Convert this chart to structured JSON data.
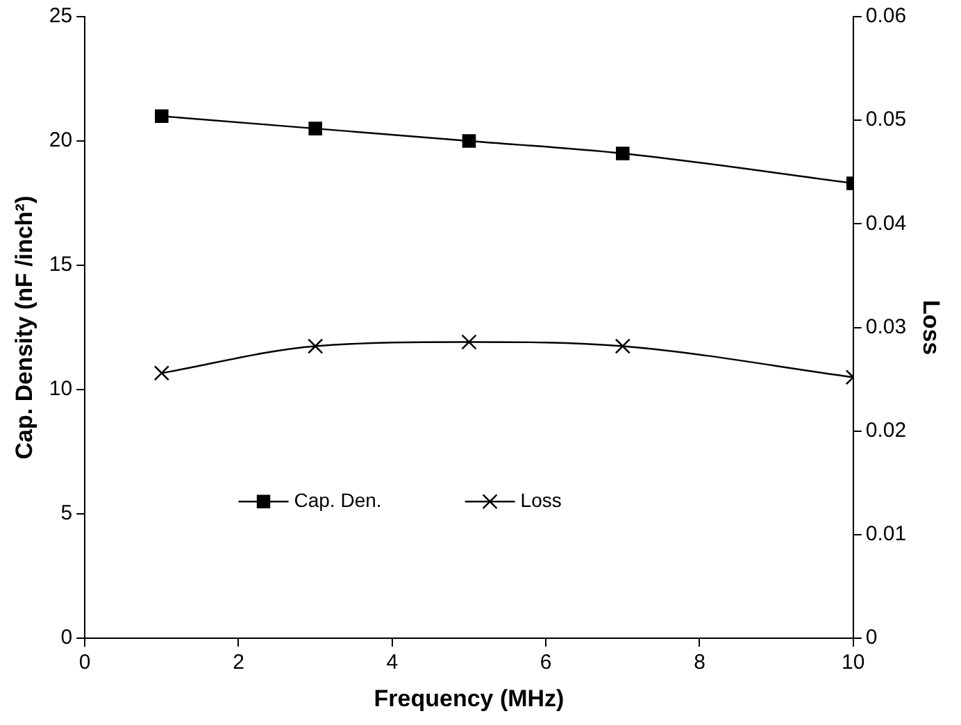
{
  "chart_data": {
    "type": "line",
    "xlabel": "Frequency (MHz)",
    "ylabel": "Cap. Density (nF /inch²)",
    "y2label": "Loss",
    "x": [
      1,
      3,
      5,
      7,
      10
    ],
    "series": [
      {
        "name": "Cap. Den.",
        "color": "#000000",
        "marker": "square",
        "values": [
          21,
          20.5,
          20,
          19.5,
          18.3
        ]
      },
      {
        "name": "Loss",
        "color": "#000000",
        "marker": "cross",
        "axis": "y2",
        "values": [
          0.0256,
          0.0282,
          0.0286,
          0.0282,
          0.0252
        ]
      }
    ],
    "xlim": [
      0,
      10
    ],
    "xticks": [
      0,
      2,
      4,
      6,
      8,
      10
    ],
    "ylim": [
      0,
      25
    ],
    "yticks": [
      0,
      5,
      10,
      15,
      20,
      25
    ],
    "y2lim": [
      0,
      0.06
    ],
    "y2ticks": [
      0,
      0.01,
      0.02,
      0.03,
      0.04,
      0.05,
      0.06
    ],
    "grid": false,
    "legend": "bottom left",
    "line_style": "solid"
  }
}
